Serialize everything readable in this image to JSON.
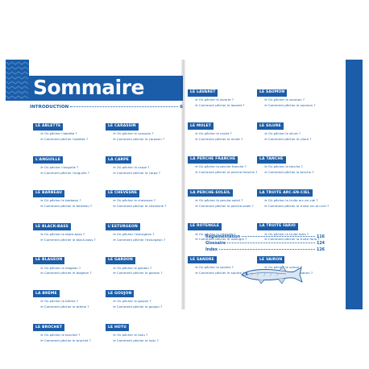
{
  "title": "Sommaire",
  "introduction": {
    "label": "INTRODUCTION",
    "page": "6"
  },
  "left_col1": [
    {
      "tag": "LE ABLETTE",
      "q1": "Où pêcher l'ablette ?",
      "q2": "Comment pêcher l'ablette ?"
    },
    {
      "tag": "L'ANGUILLE",
      "q1": "Où pêcher l'anguille ?",
      "q2": "Comment pêcher l'anguille ?"
    },
    {
      "tag": "LE BARBEAU",
      "q1": "Où pêcher le barbeau ?",
      "q2": "Comment pêcher le barbeau ?"
    },
    {
      "tag": "LE BLACK-BASS",
      "q1": "Où pêcher le black-bass ?",
      "q2": "Comment pêcher le black-bass ?"
    },
    {
      "tag": "LE BLAGEON",
      "q1": "Où pêcher le blageon ?",
      "q2": "Comment pêcher le blageon ?"
    },
    {
      "tag": "LA BRÈME",
      "q1": "Où pêcher la brème ?",
      "q2": "Comment pêcher la brème ?"
    },
    {
      "tag": "LE BROCHET",
      "q1": "Où pêcher le brochet ?",
      "q2": "Comment pêcher le brochet ?"
    }
  ],
  "left_col2": [
    {
      "tag": "LE CARASSIN",
      "q1": "Où pêcher le carassin ?",
      "q2": "Comment pêcher le carassin ?"
    },
    {
      "tag": "LA CARPE",
      "q1": "Où pêcher la carpe ?",
      "q2": "Comment pêcher la carpe ?"
    },
    {
      "tag": "LE CHEVESNE",
      "q1": "Où pêcher le chevesne ?",
      "q2": "Comment pêcher le chevesne ?"
    },
    {
      "tag": "L'ESTURGEON",
      "q1": "Où pêcher l'esturgeon ?",
      "q2": "Comment pêcher l'esturgeon ?"
    },
    {
      "tag": "LE GARDON",
      "q1": "Où pêcher le gardon ?",
      "q2": "Comment pêcher le gardon ?"
    },
    {
      "tag": "LE GOUJON",
      "q1": "Où pêcher le goujon ?",
      "q2": "Comment pêcher le goujon ?"
    },
    {
      "tag": "LE HOTU",
      "q1": "Où pêcher le hotu ?",
      "q2": "Comment pêcher le hotu ?"
    }
  ],
  "right_col1": [
    {
      "tag": "LE LAVARET",
      "q1": "Où pêcher le lavaret ?",
      "q2": "Comment pêcher le lavaret ?"
    },
    {
      "tag": "LE MULET",
      "q1": "Où pêcher le mulet ?",
      "q2": "Comment pêcher le mulet ?"
    },
    {
      "tag": "LA PERCHE FRANCHE",
      "q1": "Où pêcher la perche franche ?",
      "q2": "Comment pêcher la perche franche ?"
    },
    {
      "tag": "LA PERCHE-SOLEIL",
      "q1": "Où pêcher la perche-soleil ?",
      "q2": "Comment pêcher la perche-soleil ?"
    },
    {
      "tag": "LE ROTENGLE",
      "q1": "Où pêcher le rotengle ?",
      "q2": "Comment pêcher le rotengle ?"
    },
    {
      "tag": "LE SANDRE",
      "q1": "Où pêcher le sandre ?",
      "q2": "Comment pêcher le sandre ?"
    }
  ],
  "right_col2": [
    {
      "tag": "LE SAUMON",
      "q1": "Où pêcher le saumon ?",
      "q2": "Comment pêcher le saumon ?"
    },
    {
      "tag": "LE SILURE",
      "q1": "Où pêcher le silure ?",
      "q2": "Comment pêcher le silure ?"
    },
    {
      "tag": "LA TANCHE",
      "q1": "Où pêcher la tanche ?",
      "q2": "Comment pêcher la tanche ?"
    },
    {
      "tag": "LA TRUITE ARC-EN-CIEL",
      "q1": "Où pêcher la truite arc-en-ciel ?",
      "q2": "Comment pêcher la truite arc-en-ciel ?"
    },
    {
      "tag": "LA TRUITE FARIO",
      "q1": "Où pêcher la truite fario ?",
      "q2": "Comment pêcher la truite fario ?"
    },
    {
      "tag": "LE VAIRON",
      "q1": "Où pêcher le vairon ?",
      "q2": "Comment pêcher le vairon ?"
    }
  ],
  "annex": [
    {
      "label": "Réglementation",
      "page": "116"
    },
    {
      "label": "Glossaire",
      "page": "124"
    },
    {
      "label": "Index",
      "page": "126"
    }
  ],
  "colors": {
    "accent": "#1b5da8"
  },
  "icons": {
    "entry_arrow": "double-chevron-right-icon",
    "fish": "pike-illustration"
  }
}
